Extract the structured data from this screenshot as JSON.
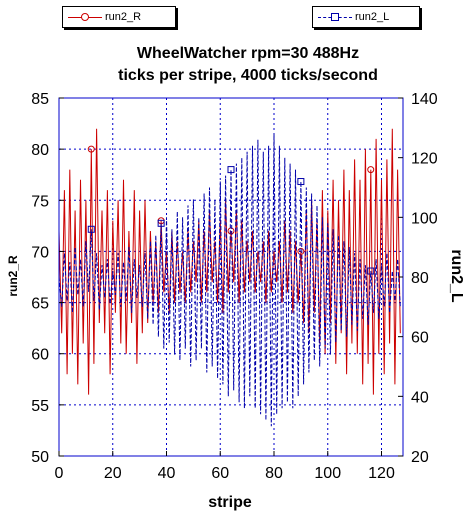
{
  "chart_data": {
    "type": "line",
    "title_line1": "WheelWatcher rpm=30 488Hz",
    "title_line2": "ticks per stripe, 4000 ticks/second",
    "xlabel": "stripe",
    "ylabel_left": "run2_R",
    "ylabel_right": "run2_L",
    "xlim": [
      0,
      128
    ],
    "ylim_left": [
      50,
      85
    ],
    "ylim_right": [
      20,
      140
    ],
    "xticks": [
      0,
      20,
      40,
      60,
      80,
      100,
      120
    ],
    "yticks_left": [
      50,
      55,
      60,
      65,
      70,
      75,
      80,
      85
    ],
    "yticks_right": [
      20,
      40,
      60,
      80,
      100,
      120,
      140
    ],
    "grid": true,
    "legend_placement": "top",
    "colors": {
      "run2_R": "#cc0000",
      "run2_L": "#0000aa",
      "grid": "#0000cc"
    },
    "series": [
      {
        "name": "run2_R",
        "axis": "left",
        "line_style": "solid",
        "marker": "circle",
        "marker_every": 26,
        "x": [
          0,
          1,
          2,
          3,
          4,
          5,
          6,
          7,
          8,
          9,
          10,
          11,
          12,
          13,
          14,
          15,
          16,
          17,
          18,
          19,
          20,
          21,
          22,
          23,
          24,
          25,
          26,
          27,
          28,
          29,
          30,
          31,
          32,
          33,
          34,
          35,
          36,
          37,
          38,
          39,
          40,
          41,
          42,
          43,
          44,
          45,
          46,
          47,
          48,
          49,
          50,
          51,
          52,
          53,
          54,
          55,
          56,
          57,
          58,
          59,
          60,
          61,
          62,
          63,
          64,
          65,
          66,
          67,
          68,
          69,
          70,
          71,
          72,
          73,
          74,
          75,
          76,
          77,
          78,
          79,
          80,
          81,
          82,
          83,
          84,
          85,
          86,
          87,
          88,
          89,
          90,
          91,
          92,
          93,
          94,
          95,
          96,
          97,
          98,
          99,
          100,
          101,
          102,
          103,
          104,
          105,
          106,
          107,
          108,
          109,
          110,
          111,
          112,
          113,
          114,
          115,
          116,
          117,
          118,
          119,
          120,
          121,
          122,
          123,
          124,
          125,
          126,
          127
        ],
        "values": [
          72,
          62,
          76,
          58,
          78,
          60,
          74,
          57,
          77,
          61,
          75,
          56,
          80,
          59,
          82,
          63,
          74,
          62,
          76,
          58,
          73,
          64,
          75,
          61,
          77,
          60,
          72,
          63,
          76,
          59,
          74,
          62,
          75,
          63,
          72,
          65,
          71,
          64,
          73,
          66,
          70,
          64,
          72,
          65,
          71,
          66,
          70,
          65,
          72,
          66,
          71,
          67,
          73,
          65,
          72,
          66,
          74,
          67,
          71,
          65,
          73,
          64,
          75,
          66,
          72,
          67,
          74,
          65,
          73,
          66,
          71,
          67,
          72,
          66,
          70,
          67,
          71,
          65,
          72,
          66,
          70,
          67,
          71,
          65,
          73,
          66,
          72,
          64,
          71,
          65,
          70,
          63,
          74,
          62,
          75,
          64,
          73,
          61,
          76,
          60,
          74,
          63,
          77,
          59,
          75,
          62,
          78,
          58,
          76,
          61,
          79,
          60,
          77,
          57,
          80,
          59,
          78,
          56,
          81,
          60,
          77,
          58,
          79,
          61,
          82,
          57,
          78,
          62
        ]
      },
      {
        "name": "run2_L",
        "axis": "right",
        "line_style": "dashed",
        "marker": "square",
        "marker_every": 26,
        "x": [
          0,
          1,
          2,
          3,
          4,
          5,
          6,
          7,
          8,
          9,
          10,
          11,
          12,
          13,
          14,
          15,
          16,
          17,
          18,
          19,
          20,
          21,
          22,
          23,
          24,
          25,
          26,
          27,
          28,
          29,
          30,
          31,
          32,
          33,
          34,
          35,
          36,
          37,
          38,
          39,
          40,
          41,
          42,
          43,
          44,
          45,
          46,
          47,
          48,
          49,
          50,
          51,
          52,
          53,
          54,
          55,
          56,
          57,
          58,
          59,
          60,
          61,
          62,
          63,
          64,
          65,
          66,
          67,
          68,
          69,
          70,
          71,
          72,
          73,
          74,
          75,
          76,
          77,
          78,
          79,
          80,
          81,
          82,
          83,
          84,
          85,
          86,
          87,
          88,
          89,
          90,
          91,
          92,
          93,
          94,
          95,
          96,
          97,
          98,
          99,
          100,
          101,
          102,
          103,
          104,
          105,
          106,
          107,
          108,
          109,
          110,
          111,
          112,
          113,
          114,
          115,
          116,
          117,
          118,
          119,
          120,
          121,
          122,
          123,
          124,
          125,
          126,
          127
        ],
        "values": [
          80,
          70,
          88,
          72,
          85,
          68,
          90,
          74,
          86,
          70,
          92,
          75,
          96,
          72,
          88,
          69,
          84,
          73,
          86,
          71,
          82,
          74,
          88,
          70,
          85,
          72,
          90,
          68,
          86,
          73,
          84,
          70,
          88,
          66,
          92,
          64,
          94,
          60,
          98,
          56,
          100,
          58,
          96,
          54,
          102,
          52,
          100,
          56,
          104,
          50,
          106,
          52,
          100,
          56,
          108,
          48,
          110,
          50,
          106,
          46,
          112,
          44,
          114,
          40,
          116,
          42,
          118,
          38,
          120,
          36,
          122,
          40,
          124,
          36,
          126,
          34,
          122,
          32,
          124,
          30,
          128,
          34,
          124,
          36,
          120,
          38,
          118,
          36,
          116,
          40,
          112,
          44,
          110,
          48,
          108,
          52,
          104,
          50,
          100,
          56,
          98,
          54,
          96,
          58,
          94,
          62,
          92,
          60,
          90,
          64,
          88,
          62,
          86,
          66,
          84,
          64,
          82,
          68,
          86,
          66,
          84,
          70,
          88,
          68,
          82,
          72,
          86,
          70
        ]
      }
    ]
  }
}
